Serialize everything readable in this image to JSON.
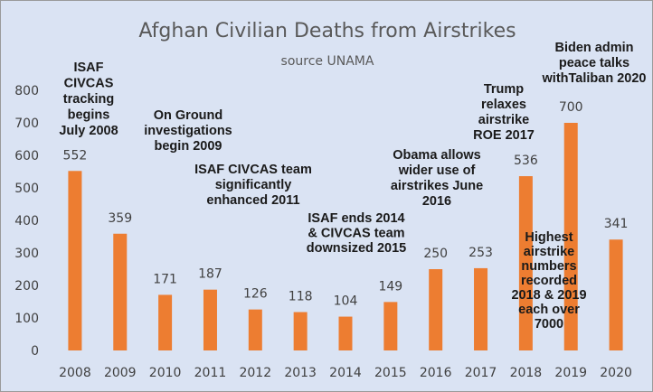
{
  "chart_data": {
    "type": "bar",
    "title": "Afghan Civilian Deaths from Airstrikes",
    "subtitle": "source UNAMA",
    "xlabel": "",
    "ylabel": "",
    "categories": [
      "2008",
      "2009",
      "2010",
      "2011",
      "2012",
      "2013",
      "2014",
      "2015",
      "2016",
      "2017",
      "2018",
      "2019",
      "2020"
    ],
    "values": [
      552,
      359,
      171,
      187,
      126,
      118,
      104,
      149,
      250,
      253,
      536,
      700,
      341
    ],
    "data_labels": [
      "552",
      "359",
      "171",
      "187",
      "126",
      "118",
      "104",
      "149",
      "250",
      "253",
      "536",
      "700",
      "341"
    ],
    "ylim": [
      0,
      800
    ],
    "yticks": [
      "0",
      "100",
      "200",
      "300",
      "400",
      "500",
      "600",
      "700",
      "800"
    ],
    "grid": false,
    "legend": "none",
    "colors": {
      "bar": "#ED7D31",
      "background": "#DAE3F3",
      "text": "#404040",
      "annotation": "#1a1a1a"
    },
    "annotations": [
      {
        "lines": [
          "ISAF",
          "CIVCAS",
          "tracking",
          "begins",
          "July 2008"
        ]
      },
      {
        "lines": [
          "On Ground",
          "investigations",
          "begin 2009"
        ]
      },
      {
        "lines": [
          "ISAF CIVCAS team",
          "significantly",
          "enhanced 2011"
        ]
      },
      {
        "lines": [
          "ISAF ends 2014",
          "& CIVCAS team",
          "downsized 2015"
        ]
      },
      {
        "lines": [
          "Obama allows",
          "wider use of",
          "airstrikes June",
          "2016"
        ]
      },
      {
        "lines": [
          "Trump",
          "relaxes",
          "airstrike",
          "ROE 2017"
        ]
      },
      {
        "lines": [
          "Biden admin",
          "peace talks",
          "withTaliban 2020"
        ]
      },
      {
        "lines": [
          "Highest",
          "airstrike",
          "numbers",
          "recorded",
          "2018 & 2019",
          "each over",
          "7000"
        ]
      }
    ]
  }
}
